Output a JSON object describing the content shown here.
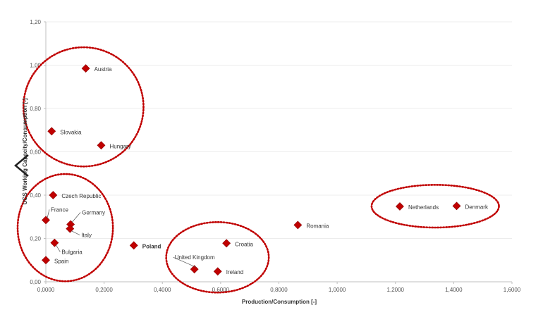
{
  "chart_data": {
    "type": "scatter",
    "title": "",
    "xlabel": "Production/Consumption  [-]",
    "ylabel": "UGS Working Capacity/Consumption [-]",
    "xlim": [
      0,
      1.6
    ],
    "ylim": [
      0,
      1.2
    ],
    "xticks": [
      0,
      0.2,
      0.4,
      0.6,
      0.8,
      1.0,
      1.2,
      1.4,
      1.6
    ],
    "yticks": [
      0,
      0.2,
      0.4,
      0.6,
      0.8,
      1.0,
      1.2
    ],
    "xtick_labels": [
      "0,0000",
      "0,2000",
      "0,4000",
      "0,6000",
      "0,8000",
      "1,0000",
      "1,2000",
      "1,4000",
      "1,6000"
    ],
    "ytick_labels": [
      "0,00",
      "0,20",
      "0,40",
      "0,60",
      "0,80",
      "1,00",
      "1,20"
    ],
    "grid": true,
    "marker_color": "#c00000",
    "group_outline_color": "#c00000",
    "points": [
      {
        "label": "Austria",
        "x": 0.137,
        "y": 0.985
      },
      {
        "label": "Slovakia",
        "x": 0.02,
        "y": 0.695
      },
      {
        "label": "Hungary",
        "x": 0.19,
        "y": 0.63
      },
      {
        "label": "Czech Republic",
        "x": 0.025,
        "y": 0.4
      },
      {
        "label": "France",
        "x": 0.0,
        "y": 0.285
      },
      {
        "label": "Germany",
        "x": 0.085,
        "y": 0.265
      },
      {
        "label": "Italy",
        "x": 0.083,
        "y": 0.245
      },
      {
        "label": "Bulgaria",
        "x": 0.03,
        "y": 0.18
      },
      {
        "label": "Spain",
        "x": 0.0,
        "y": 0.1
      },
      {
        "label": "Poland",
        "x": 0.302,
        "y": 0.168,
        "bold": true
      },
      {
        "label": "Croatia",
        "x": 0.62,
        "y": 0.178
      },
      {
        "label": "United Kingdom",
        "x": 0.51,
        "y": 0.058
      },
      {
        "label": "Ireland",
        "x": 0.59,
        "y": 0.048
      },
      {
        "label": "Romania",
        "x": 0.865,
        "y": 0.262
      },
      {
        "label": "Netherlands",
        "x": 1.215,
        "y": 0.348
      },
      {
        "label": "Denmark",
        "x": 1.41,
        "y": 0.35
      }
    ],
    "groups": [
      {
        "members": [
          "Austria",
          "Slovakia",
          "Hungary"
        ]
      },
      {
        "members": [
          "Czech Republic",
          "France",
          "Germany",
          "Italy",
          "Bulgaria",
          "Spain"
        ]
      },
      {
        "members": [
          "Croatia",
          "United Kingdom",
          "Ireland"
        ]
      },
      {
        "members": [
          "Netherlands",
          "Denmark"
        ]
      }
    ]
  },
  "nav": {
    "icon": "chevron-left-icon"
  }
}
